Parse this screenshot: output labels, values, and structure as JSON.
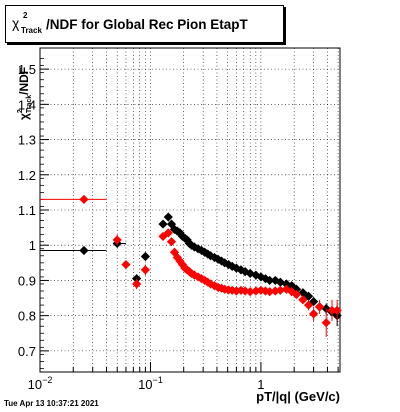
{
  "title": {
    "chi_symbol": "χ",
    "chi_sup": "2",
    "chi_sub": "Track",
    "text": "/NDF for Global Rec Pion EtapT"
  },
  "timestamp": "Tue Apr 13 10:37:21 2021",
  "chart_data": {
    "type": "scatter",
    "xscale": "log",
    "xlim": [
      0.01,
      5.2
    ],
    "ylim": [
      0.64,
      1.56
    ],
    "grid": true,
    "xlabel": "pT/|q| (GeV/c)",
    "ylabel": {
      "chi": "χ",
      "sup": "2",
      "sub": "Track",
      "suffix": "/NDF"
    },
    "xticks": [
      {
        "value": 0.01,
        "base": "10",
        "exp": "−2"
      },
      {
        "value": 0.1,
        "base": "10",
        "exp": "−1"
      },
      {
        "value": 1,
        "base": "1",
        "exp": ""
      }
    ],
    "yticks": [
      {
        "value": 0.7,
        "label": "0.7"
      },
      {
        "value": 0.8,
        "label": "0.8"
      },
      {
        "value": 0.9,
        "label": "0.9"
      },
      {
        "value": 1.0,
        "label": "1"
      },
      {
        "value": 1.1,
        "label": "1.1"
      },
      {
        "value": 1.2,
        "label": "1.2"
      },
      {
        "value": 1.3,
        "label": "1.3"
      },
      {
        "value": 1.4,
        "label": "1.4"
      },
      {
        "value": 1.5,
        "label": "1.5"
      }
    ],
    "series": [
      {
        "color": "#000000",
        "x": [
          0.025,
          0.05,
          0.075,
          0.09,
          0.13,
          0.145,
          0.155,
          0.165,
          0.175,
          0.185,
          0.195,
          0.205,
          0.215,
          0.225,
          0.235,
          0.25,
          0.27,
          0.29,
          0.31,
          0.33,
          0.35,
          0.38,
          0.41,
          0.44,
          0.47,
          0.51,
          0.55,
          0.6,
          0.66,
          0.72,
          0.8,
          0.9,
          1.0,
          1.1,
          1.2,
          1.35,
          1.5,
          1.7,
          1.9,
          2.1,
          2.4,
          2.7,
          3.0,
          3.4,
          3.9,
          4.4,
          4.9
        ],
        "y": [
          0.985,
          1.005,
          0.905,
          0.968,
          1.06,
          1.08,
          1.06,
          1.045,
          1.04,
          1.035,
          1.025,
          1.02,
          1.015,
          1.005,
          1.0,
          0.995,
          0.99,
          0.985,
          0.98,
          0.975,
          0.97,
          0.965,
          0.96,
          0.955,
          0.95,
          0.945,
          0.94,
          0.935,
          0.93,
          0.925,
          0.92,
          0.915,
          0.91,
          0.905,
          0.9,
          0.9,
          0.895,
          0.89,
          0.885,
          0.875,
          0.865,
          0.855,
          0.84,
          0.825,
          0.82,
          0.81,
          0.8
        ],
        "xerr_low": [
          0.015,
          0.0,
          0.0,
          0.0,
          0.0,
          0.0,
          0.0,
          0.0,
          0.0,
          0.0,
          0.0,
          0.0,
          0.0,
          0.0,
          0.0,
          0.0,
          0.0,
          0.0,
          0.0,
          0.0,
          0.0,
          0.0,
          0.0,
          0.0,
          0.0,
          0.0,
          0.0,
          0.0,
          0.0,
          0.0,
          0.0,
          0.0,
          0.0,
          0.0,
          0.0,
          0.0,
          0.0,
          0.0,
          0.0,
          0.0,
          0.0,
          0.0,
          0.0,
          0.0,
          0.0,
          0.0,
          0.0
        ],
        "xerr_high": [
          0.015,
          0.01,
          0.0,
          0.0,
          0.0,
          0.0,
          0.0,
          0.0,
          0.0,
          0.0,
          0.0,
          0.0,
          0.0,
          0.0,
          0.0,
          0.0,
          0.0,
          0.0,
          0.0,
          0.0,
          0.0,
          0.0,
          0.0,
          0.0,
          0.0,
          0.0,
          0.0,
          0.0,
          0.0,
          0.0,
          0.0,
          0.0,
          0.0,
          0.0,
          0.0,
          0.0,
          0.0,
          0.0,
          0.0,
          0.0,
          0.0,
          0.0,
          0.0,
          0.0,
          0.0,
          0.0,
          0.0
        ],
        "yerr": [
          0.0,
          0.01,
          0.012,
          0.01,
          0.0,
          0.0,
          0.0,
          0.0,
          0.0,
          0.0,
          0.0,
          0.0,
          0.0,
          0.0,
          0.0,
          0.0,
          0.0,
          0.0,
          0.0,
          0.0,
          0.0,
          0.0,
          0.0,
          0.0,
          0.0,
          0.0,
          0.0,
          0.0,
          0.0,
          0.0,
          0.0,
          0.0,
          0.0,
          0.0,
          0.0,
          0.0,
          0.0,
          0.0,
          0.0,
          0.0,
          0.0,
          0.0,
          0.01,
          0.01,
          0.015,
          0.02,
          0.03
        ]
      },
      {
        "color": "#ff0000",
        "x": [
          0.025,
          0.05,
          0.06,
          0.075,
          0.09,
          0.13,
          0.145,
          0.155,
          0.165,
          0.175,
          0.185,
          0.195,
          0.205,
          0.215,
          0.225,
          0.235,
          0.25,
          0.27,
          0.29,
          0.31,
          0.33,
          0.35,
          0.38,
          0.41,
          0.44,
          0.47,
          0.51,
          0.55,
          0.6,
          0.66,
          0.72,
          0.8,
          0.9,
          1.0,
          1.1,
          1.2,
          1.35,
          1.5,
          1.7,
          1.9,
          2.1,
          2.4,
          2.7,
          3.0,
          3.4,
          3.9,
          4.4,
          4.9
        ],
        "y": [
          1.13,
          1.015,
          0.945,
          0.89,
          0.93,
          1.025,
          1.035,
          1.01,
          0.98,
          0.965,
          0.955,
          0.945,
          0.935,
          0.93,
          0.925,
          0.92,
          0.915,
          0.91,
          0.905,
          0.9,
          0.895,
          0.89,
          0.885,
          0.88,
          0.878,
          0.875,
          0.873,
          0.872,
          0.87,
          0.872,
          0.87,
          0.868,
          0.87,
          0.872,
          0.87,
          0.868,
          0.87,
          0.872,
          0.875,
          0.868,
          0.86,
          0.845,
          0.83,
          0.805,
          0.825,
          0.78,
          0.815,
          0.815
        ],
        "xerr_low": [
          0.015,
          0.0,
          0.0,
          0.0,
          0.0,
          0.0,
          0.0,
          0.0,
          0.0,
          0.0,
          0.0,
          0.0,
          0.0,
          0.0,
          0.0,
          0.0,
          0.0,
          0.0,
          0.0,
          0.0,
          0.0,
          0.0,
          0.0,
          0.0,
          0.0,
          0.0,
          0.0,
          0.0,
          0.0,
          0.0,
          0.0,
          0.0,
          0.0,
          0.0,
          0.0,
          0.0,
          0.0,
          0.0,
          0.0,
          0.0,
          0.0,
          0.0,
          0.0,
          0.0,
          0.0,
          0.0,
          0.0,
          0.0
        ],
        "xerr_high": [
          0.015,
          0.0,
          0.0,
          0.0,
          0.0,
          0.0,
          0.0,
          0.0,
          0.0,
          0.0,
          0.0,
          0.0,
          0.0,
          0.0,
          0.0,
          0.0,
          0.0,
          0.0,
          0.0,
          0.0,
          0.0,
          0.0,
          0.0,
          0.0,
          0.0,
          0.0,
          0.0,
          0.0,
          0.0,
          0.0,
          0.0,
          0.0,
          0.0,
          0.0,
          0.0,
          0.0,
          0.0,
          0.0,
          0.0,
          0.0,
          0.0,
          0.0,
          0.0,
          0.0,
          0.0,
          0.0,
          0.0,
          0.0
        ],
        "yerr": [
          0.01,
          0.015,
          0.01,
          0.015,
          0.015,
          0.0,
          0.0,
          0.0,
          0.0,
          0.0,
          0.0,
          0.0,
          0.0,
          0.0,
          0.0,
          0.0,
          0.0,
          0.0,
          0.0,
          0.0,
          0.0,
          0.0,
          0.0,
          0.0,
          0.0,
          0.0,
          0.0,
          0.0,
          0.0,
          0.0,
          0.0,
          0.0,
          0.0,
          0.0,
          0.0,
          0.0,
          0.0,
          0.0,
          0.0,
          0.0,
          0.01,
          0.01,
          0.015,
          0.02,
          0.02,
          0.04,
          0.03,
          0.03
        ]
      }
    ]
  }
}
